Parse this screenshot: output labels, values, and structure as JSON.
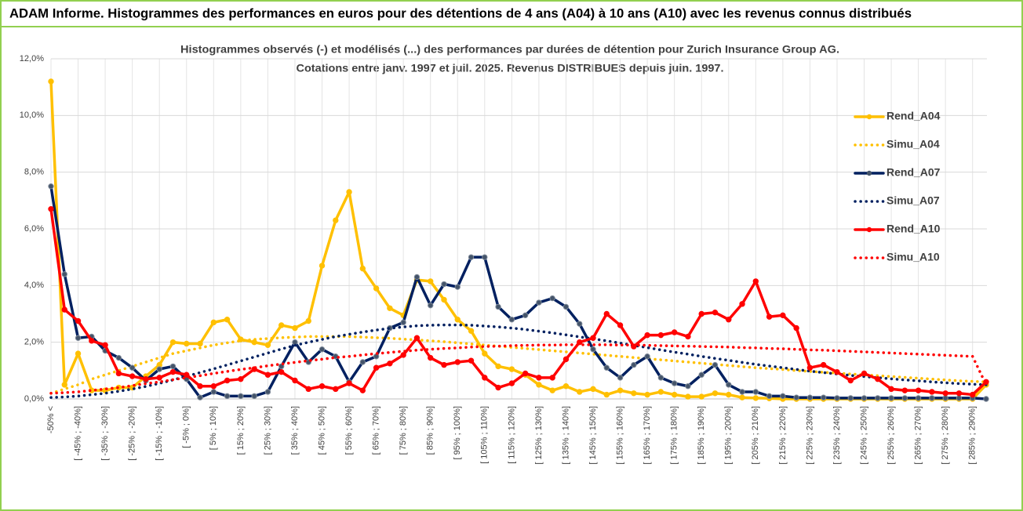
{
  "chart_data": {
    "type": "line",
    "title": "ADAM Informe. Histogrammes des performances en euros pour des détentions de 4 ans (A04) à 10 ans (A10) avec les revenus connus distribués",
    "subtitle": [
      "Histogrammes observés (-) et modélisés (...) des performances par durées de détention pour Zurich Insurance Group AG.",
      "Cotations entre janv. 1997 et juil. 2025. Revenus DISTRIBUES depuis juin. 1997."
    ],
    "categories": [
      "-50% <",
      null,
      "[ -45% ; -40%]",
      null,
      "[ -35% ; -30%]",
      null,
      "[ -25% ; -20%]",
      null,
      "[ -15% ; -10%]",
      null,
      "[ -5% ; 0%]",
      null,
      "[ 5% ; 10%]",
      null,
      "[ 15% ; 20%]",
      null,
      "[ 25% ; 30%]",
      null,
      "[ 35% ; 40%]",
      null,
      "[ 45% ; 50%]",
      null,
      "[ 55% ; 60%]",
      null,
      "[ 65% ; 70%]",
      null,
      "[ 75% ; 80%]",
      null,
      "[ 85% ; 90%]",
      null,
      "[ 95% ; 100%]",
      null,
      "[ 105% ; 110%]",
      null,
      "[ 115% ; 120%]",
      null,
      "[ 125% ; 130%]",
      null,
      "[ 135% ; 140%]",
      null,
      "[ 145% ; 150%]",
      null,
      "[ 155% ; 160%]",
      null,
      "[ 165% ; 170%]",
      null,
      "[ 175% ; 180%]",
      null,
      "[ 185% ; 190%]",
      null,
      "[ 195% ; 200%]",
      null,
      "[ 205% ; 210%]",
      null,
      "[ 215% ; 220%]",
      null,
      "[ 225% ; 230%]",
      null,
      "[ 235% ; 240%]",
      null,
      "[ 245% ; 250%]",
      null,
      "[ 255% ; 260%]",
      null,
      "[ 265% ; 270%]",
      null,
      "[ 275% ; 280%]",
      null,
      "[ 285% ; 290%]",
      null
    ],
    "series": [
      {
        "name": "Rend_A04",
        "color": "#ffc000",
        "line_style": "solid",
        "markers": true,
        "values": [
          11.2,
          0.5,
          1.6,
          0.3,
          0.3,
          0.4,
          0.4,
          0.8,
          1.2,
          2.0,
          1.95,
          1.95,
          2.7,
          2.8,
          2.1,
          2.0,
          1.9,
          2.6,
          2.5,
          2.75,
          4.7,
          6.3,
          7.3,
          4.6,
          3.9,
          3.2,
          2.95,
          4.2,
          4.15,
          3.5,
          2.8,
          2.4,
          1.6,
          1.15,
          1.05,
          0.85,
          0.5,
          0.3,
          0.45,
          0.25,
          0.35,
          0.15,
          0.3,
          0.2,
          0.15,
          0.25,
          0.15,
          0.08,
          0.08,
          0.2,
          0.15,
          0.05,
          0.03,
          0.02,
          0,
          0,
          0,
          0,
          0,
          0,
          0,
          0,
          0,
          0,
          0,
          0,
          0,
          0,
          0,
          0.5
        ]
      },
      {
        "name": "Simu_A04",
        "color": "#ffc000",
        "line_style": "dotted",
        "markers": false,
        "values": [
          0.2,
          0.35,
          0.5,
          0.7,
          0.85,
          1.0,
          1.15,
          1.3,
          1.45,
          1.6,
          1.7,
          1.8,
          1.9,
          1.98,
          2.05,
          2.1,
          2.13,
          2.16,
          2.18,
          2.2,
          2.2,
          2.2,
          2.2,
          2.18,
          2.16,
          2.14,
          2.11,
          2.08,
          2.05,
          2.02,
          1.98,
          1.94,
          1.9,
          1.86,
          1.82,
          1.78,
          1.74,
          1.7,
          1.66,
          1.62,
          1.58,
          1.54,
          1.5,
          1.46,
          1.42,
          1.38,
          1.34,
          1.3,
          1.26,
          1.22,
          1.18,
          1.14,
          1.1,
          1.07,
          1.04,
          1.0,
          0.97,
          0.94,
          0.91,
          0.88,
          0.85,
          0.82,
          0.79,
          0.76,
          0.73,
          0.7,
          0.67,
          0.64,
          0.62,
          0.6
        ]
      },
      {
        "name": "Rend_A07",
        "color": "#002060",
        "line_style": "solid",
        "markers": true,
        "values": [
          7.5,
          4.4,
          2.15,
          2.2,
          1.7,
          1.45,
          1.1,
          0.65,
          1.05,
          1.15,
          0.7,
          0.05,
          0.25,
          0.1,
          0.1,
          0.1,
          0.25,
          1.15,
          2.0,
          1.3,
          1.75,
          1.5,
          0.6,
          1.3,
          1.5,
          2.5,
          2.7,
          4.3,
          3.3,
          4.05,
          3.95,
          5.0,
          5.0,
          3.25,
          2.8,
          2.95,
          3.4,
          3.55,
          3.25,
          2.65,
          1.75,
          1.1,
          0.75,
          1.2,
          1.5,
          0.75,
          0.55,
          0.45,
          0.85,
          1.2,
          0.5,
          0.25,
          0.25,
          0.1,
          0.1,
          0.05,
          0.05,
          0.05,
          0.03,
          0.03,
          0.03,
          0.03,
          0.03,
          0.03,
          0.03,
          0.03,
          0.03,
          0.03,
          0.03,
          0
        ]
      },
      {
        "name": "Simu_A07",
        "color": "#002060",
        "line_style": "dotted",
        "markers": false,
        "values": [
          0.05,
          0.07,
          0.1,
          0.15,
          0.2,
          0.27,
          0.35,
          0.44,
          0.55,
          0.67,
          0.8,
          0.93,
          1.06,
          1.2,
          1.34,
          1.48,
          1.62,
          1.76,
          1.89,
          2.0,
          2.1,
          2.2,
          2.28,
          2.36,
          2.43,
          2.49,
          2.54,
          2.58,
          2.6,
          2.61,
          2.61,
          2.6,
          2.57,
          2.54,
          2.5,
          2.45,
          2.39,
          2.33,
          2.26,
          2.19,
          2.12,
          2.05,
          1.97,
          1.89,
          1.81,
          1.73,
          1.65,
          1.58,
          1.5,
          1.43,
          1.36,
          1.29,
          1.22,
          1.16,
          1.1,
          1.04,
          0.98,
          0.93,
          0.88,
          0.83,
          0.79,
          0.75,
          0.71,
          0.67,
          0.64,
          0.6,
          0.57,
          0.54,
          0.52,
          0.5
        ]
      },
      {
        "name": "Rend_A10",
        "color": "#ff0000",
        "line_style": "solid",
        "markers": true,
        "values": [
          6.7,
          3.15,
          2.75,
          2.05,
          1.9,
          0.9,
          0.8,
          0.7,
          0.75,
          0.95,
          0.85,
          0.45,
          0.45,
          0.65,
          0.7,
          1.05,
          0.85,
          0.95,
          0.65,
          0.35,
          0.45,
          0.35,
          0.55,
          0.3,
          1.1,
          1.25,
          1.55,
          2.15,
          1.45,
          1.2,
          1.3,
          1.35,
          0.75,
          0.4,
          0.55,
          0.9,
          0.75,
          0.75,
          1.4,
          2.0,
          2.15,
          3.0,
          2.6,
          1.85,
          2.25,
          2.25,
          2.35,
          2.2,
          3.0,
          3.05,
          2.8,
          3.35,
          4.15,
          2.9,
          2.95,
          2.5,
          1.1,
          1.2,
          0.95,
          0.65,
          0.9,
          0.7,
          0.35,
          0.3,
          0.3,
          0.25,
          0.2,
          0.2,
          0.15,
          0.6
        ]
      },
      {
        "name": "Simu_A10",
        "color": "#ff0000",
        "line_style": "dotted",
        "markers": false,
        "values": [
          0.2,
          0.22,
          0.25,
          0.3,
          0.35,
          0.4,
          0.47,
          0.54,
          0.6,
          0.68,
          0.75,
          0.82,
          0.9,
          0.97,
          1.04,
          1.1,
          1.17,
          1.23,
          1.29,
          1.35,
          1.4,
          1.46,
          1.5,
          1.55,
          1.6,
          1.64,
          1.68,
          1.72,
          1.75,
          1.78,
          1.8,
          1.83,
          1.85,
          1.86,
          1.88,
          1.89,
          1.9,
          1.9,
          1.91,
          1.91,
          1.91,
          1.91,
          1.9,
          1.9,
          1.89,
          1.88,
          1.87,
          1.86,
          1.85,
          1.84,
          1.83,
          1.81,
          1.8,
          1.78,
          1.77,
          1.75,
          1.73,
          1.72,
          1.7,
          1.68,
          1.66,
          1.64,
          1.62,
          1.6,
          1.58,
          1.56,
          1.54,
          1.52,
          1.5,
          0.5
        ]
      }
    ],
    "ylim": [
      0,
      12
    ],
    "yticks": [
      {
        "value": 0,
        "label": "0,0%"
      },
      {
        "value": 2,
        "label": "2,0%"
      },
      {
        "value": 4,
        "label": "4,0%"
      },
      {
        "value": 6,
        "label": "6,0%"
      },
      {
        "value": 8,
        "label": "8,0%"
      },
      {
        "value": 10,
        "label": "10,0%"
      },
      {
        "value": 12,
        "label": "12,0%"
      }
    ],
    "grid": true,
    "legend": "right"
  }
}
